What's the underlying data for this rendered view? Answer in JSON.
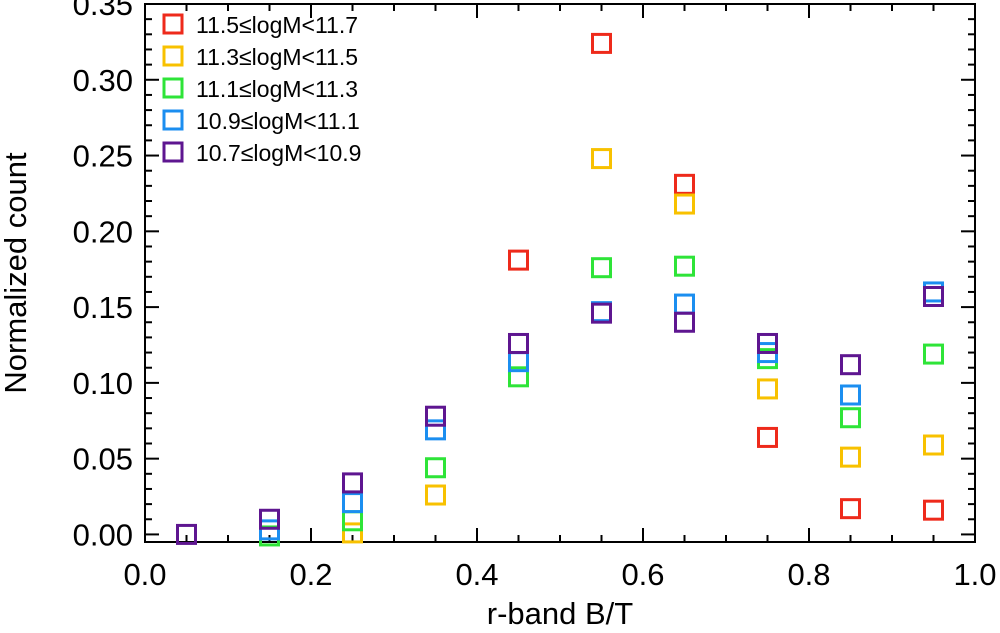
{
  "chart_data": {
    "type": "scatter",
    "title": "",
    "xlabel": "r-band B/T",
    "ylabel": "Normalized count",
    "xlim": [
      0.0,
      1.0
    ],
    "ylim": [
      -0.005,
      0.35
    ],
    "x_ticks": [
      "0.0",
      "0.2",
      "0.4",
      "0.6",
      "0.8",
      "1.0"
    ],
    "y_ticks": [
      "0.00",
      "0.05",
      "0.10",
      "0.15",
      "0.20",
      "0.25",
      "0.30",
      "0.35"
    ],
    "legend_position": "top-left",
    "marker": "open-square",
    "x": [
      0.05,
      0.15,
      0.25,
      0.35,
      0.45,
      0.55,
      0.65,
      0.75,
      0.85,
      0.95
    ],
    "series": [
      {
        "name": "11.5≤logM<11.7",
        "color": "#ee2a1b",
        "values": [
          null,
          null,
          null,
          null,
          0.181,
          0.324,
          0.231,
          0.064,
          0.017,
          0.016
        ]
      },
      {
        "name": "11.3≤logM<11.5",
        "color": "#f8c100",
        "values": [
          null,
          null,
          0.001,
          0.026,
          null,
          0.248,
          0.218,
          0.096,
          0.051,
          0.059
        ]
      },
      {
        "name": "11.1≤logM<11.3",
        "color": "#2ee438",
        "values": [
          null,
          -0.001,
          0.009,
          0.044,
          0.104,
          0.176,
          0.177,
          0.116,
          0.077,
          0.119
        ]
      },
      {
        "name": "10.9≤logM<11.1",
        "color": "#1b8ef0",
        "values": [
          null,
          0.003,
          0.021,
          0.069,
          0.114,
          0.147,
          0.152,
          0.12,
          0.092,
          0.16
        ]
      },
      {
        "name": "10.7≤logM<10.9",
        "color": "#5e1690",
        "values": [
          0.0,
          0.01,
          0.034,
          0.078,
          0.126,
          0.146,
          0.14,
          0.126,
          0.112,
          0.157
        ]
      }
    ]
  }
}
